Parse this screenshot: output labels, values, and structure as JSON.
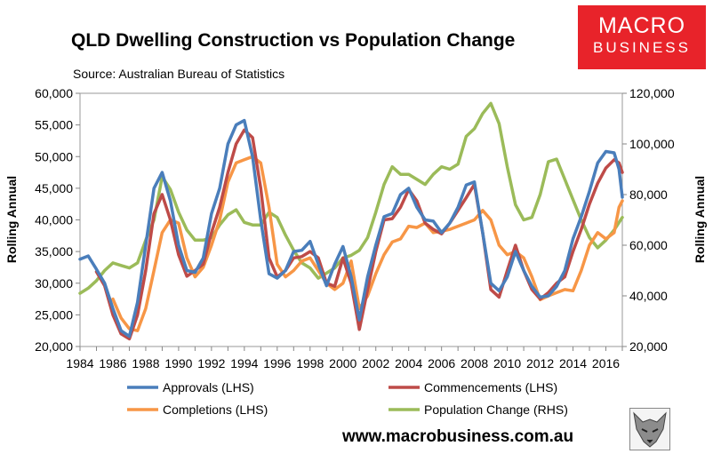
{
  "header": {
    "title": "QLD Dwelling Construction vs Population Change",
    "subtitle": "Source: Australian Bureau of Statistics"
  },
  "logo": {
    "line1": "MACRO",
    "line2": "BUSINESS",
    "color": "#e8232a"
  },
  "footer": {
    "website": "www.macrobusiness.com.au"
  },
  "chart_data": {
    "type": "line",
    "title": "QLD Dwelling Construction vs Population Change",
    "subtitle": "Source: Australian Bureau of Statistics",
    "ylabel": "Rolling Annual",
    "ylabel_right": "Rolling Annual",
    "ylim": [
      20000,
      60000
    ],
    "ylim_right": [
      20000,
      120000
    ],
    "xlim": [
      1984,
      2017
    ],
    "x_ticks": [
      "1984",
      "1986",
      "1988",
      "1990",
      "1992",
      "1994",
      "1996",
      "1998",
      "2000",
      "2002",
      "2004",
      "2006",
      "2008",
      "2010",
      "2012",
      "2014",
      "2016"
    ],
    "y_ticks_left": [
      "20,000",
      "25,000",
      "30,000",
      "35,000",
      "40,000",
      "45,000",
      "50,000",
      "55,000",
      "60,000"
    ],
    "y_ticks_right": [
      "20,000",
      "40,000",
      "60,000",
      "80,000",
      "100,000",
      "120,000"
    ],
    "grid": false,
    "legend_position": "bottom",
    "series": [
      {
        "name": "Approvals (LHS)",
        "axis": "left",
        "color": "#4a7ebb",
        "points": [
          [
            1984,
            33800
          ],
          [
            1984.5,
            34300
          ],
          [
            1985,
            32200
          ],
          [
            1985.5,
            30000
          ],
          [
            1986,
            26000
          ],
          [
            1986.5,
            22500
          ],
          [
            1987,
            21600
          ],
          [
            1987.5,
            27000
          ],
          [
            1988,
            36000
          ],
          [
            1988.5,
            45000
          ],
          [
            1989,
            47500
          ],
          [
            1989.5,
            43000
          ],
          [
            1990,
            36000
          ],
          [
            1990.5,
            32000
          ],
          [
            1991,
            31700
          ],
          [
            1991.5,
            34000
          ],
          [
            1992,
            41000
          ],
          [
            1992.5,
            45000
          ],
          [
            1993,
            52000
          ],
          [
            1993.5,
            55000
          ],
          [
            1994,
            55700
          ],
          [
            1994.5,
            50000
          ],
          [
            1995,
            40000
          ],
          [
            1995.5,
            31500
          ],
          [
            1996,
            30800
          ],
          [
            1996.5,
            32000
          ],
          [
            1997,
            35000
          ],
          [
            1997.5,
            35200
          ],
          [
            1998,
            36600
          ],
          [
            1998.5,
            33000
          ],
          [
            1999,
            29600
          ],
          [
            1999.5,
            33000
          ],
          [
            2000,
            35800
          ],
          [
            2000.5,
            31000
          ],
          [
            2001,
            24200
          ],
          [
            2001.5,
            31000
          ],
          [
            2002,
            36000
          ],
          [
            2002.5,
            40500
          ],
          [
            2003,
            41000
          ],
          [
            2003.5,
            44000
          ],
          [
            2004,
            45000
          ],
          [
            2004.5,
            42000
          ],
          [
            2005,
            40000
          ],
          [
            2005.5,
            39800
          ],
          [
            2006,
            38000
          ],
          [
            2006.5,
            39500
          ],
          [
            2007,
            42000
          ],
          [
            2007.5,
            45500
          ],
          [
            2008,
            46000
          ],
          [
            2008.5,
            38000
          ],
          [
            2009,
            30000
          ],
          [
            2009.5,
            28800
          ],
          [
            2010,
            31000
          ],
          [
            2010.5,
            35000
          ],
          [
            2011,
            32000
          ],
          [
            2011.5,
            29500
          ],
          [
            2012,
            27800
          ],
          [
            2012.5,
            28000
          ],
          [
            2013,
            29500
          ],
          [
            2013.5,
            32000
          ],
          [
            2014,
            37000
          ],
          [
            2014.5,
            40500
          ],
          [
            2015,
            44500
          ],
          [
            2015.5,
            49000
          ],
          [
            2016,
            50800
          ],
          [
            2016.5,
            50600
          ],
          [
            2016.8,
            48000
          ],
          [
            2017,
            43600
          ]
        ]
      },
      {
        "name": "Commencements (LHS)",
        "axis": "left",
        "color": "#be4b48",
        "points": [
          [
            1985,
            31800
          ],
          [
            1985.5,
            29600
          ],
          [
            1986,
            25000
          ],
          [
            1986.5,
            22000
          ],
          [
            1987,
            21200
          ],
          [
            1987.5,
            25000
          ],
          [
            1988,
            32000
          ],
          [
            1988.5,
            41000
          ],
          [
            1989,
            44000
          ],
          [
            1989.5,
            40000
          ],
          [
            1990,
            34500
          ],
          [
            1990.5,
            31100
          ],
          [
            1991,
            32000
          ],
          [
            1991.5,
            33000
          ],
          [
            1992,
            38000
          ],
          [
            1992.5,
            42000
          ],
          [
            1993,
            47500
          ],
          [
            1993.5,
            52000
          ],
          [
            1994,
            54200
          ],
          [
            1994.5,
            53000
          ],
          [
            1995,
            45000
          ],
          [
            1995.5,
            34000
          ],
          [
            1996,
            31000
          ],
          [
            1996.5,
            32000
          ],
          [
            1997,
            34000
          ],
          [
            1997.5,
            34200
          ],
          [
            1998,
            35000
          ],
          [
            1998.5,
            34000
          ],
          [
            1999,
            30000
          ],
          [
            1999.5,
            29500
          ],
          [
            2000,
            34000
          ],
          [
            2000.5,
            30000
          ],
          [
            2001,
            22700
          ],
          [
            2001.5,
            29000
          ],
          [
            2002,
            35000
          ],
          [
            2002.5,
            40000
          ],
          [
            2003,
            40200
          ],
          [
            2003.5,
            42000
          ],
          [
            2004,
            44800
          ],
          [
            2004.5,
            43000
          ],
          [
            2005,
            39500
          ],
          [
            2005.5,
            38500
          ],
          [
            2006,
            37800
          ],
          [
            2006.5,
            39500
          ],
          [
            2007,
            41500
          ],
          [
            2007.5,
            43500
          ],
          [
            2008,
            45600
          ],
          [
            2008.5,
            38000
          ],
          [
            2009,
            29000
          ],
          [
            2009.5,
            27800
          ],
          [
            2010,
            32000
          ],
          [
            2010.5,
            36000
          ],
          [
            2011,
            32000
          ],
          [
            2011.5,
            29000
          ],
          [
            2012,
            27500
          ],
          [
            2012.5,
            28500
          ],
          [
            2013,
            30000
          ],
          [
            2013.5,
            31000
          ],
          [
            2014,
            35000
          ],
          [
            2014.5,
            38500
          ],
          [
            2015,
            42500
          ],
          [
            2015.5,
            45800
          ],
          [
            2016,
            48200
          ],
          [
            2016.5,
            49500
          ],
          [
            2016.8,
            49000
          ],
          [
            2017,
            47500
          ]
        ]
      },
      {
        "name": "Completions (LHS)",
        "axis": "left",
        "color": "#f79646",
        "points": [
          [
            1986,
            27500
          ],
          [
            1986.5,
            24500
          ],
          [
            1987,
            22800
          ],
          [
            1987.5,
            22500
          ],
          [
            1988,
            26000
          ],
          [
            1988.5,
            32000
          ],
          [
            1989,
            38000
          ],
          [
            1989.5,
            40000
          ],
          [
            1990,
            39500
          ],
          [
            1990.5,
            34000
          ],
          [
            1991,
            31000
          ],
          [
            1991.5,
            32500
          ],
          [
            1992,
            36000
          ],
          [
            1992.5,
            40000
          ],
          [
            1993,
            46000
          ],
          [
            1993.5,
            49000
          ],
          [
            1994,
            49500
          ],
          [
            1994.5,
            50000
          ],
          [
            1995,
            49000
          ],
          [
            1995.5,
            42000
          ],
          [
            1996,
            33000
          ],
          [
            1996.5,
            31000
          ],
          [
            1997,
            32000
          ],
          [
            1997.5,
            33500
          ],
          [
            1998,
            34000
          ],
          [
            1998.5,
            32000
          ],
          [
            1999,
            30000
          ],
          [
            1999.5,
            29000
          ],
          [
            2000,
            30000
          ],
          [
            2000.5,
            33500
          ],
          [
            2001,
            26000
          ],
          [
            2001.5,
            28000
          ],
          [
            2002,
            31500
          ],
          [
            2002.5,
            34500
          ],
          [
            2003,
            36500
          ],
          [
            2003.5,
            37000
          ],
          [
            2004,
            39000
          ],
          [
            2004.5,
            38800
          ],
          [
            2005,
            39500
          ],
          [
            2005.5,
            38000
          ],
          [
            2006,
            38200
          ],
          [
            2006.5,
            38500
          ],
          [
            2007,
            39000
          ],
          [
            2007.5,
            39500
          ],
          [
            2008,
            40000
          ],
          [
            2008.5,
            41500
          ],
          [
            2009,
            40000
          ],
          [
            2009.5,
            36000
          ],
          [
            2010,
            34500
          ],
          [
            2010.5,
            35000
          ],
          [
            2011,
            34000
          ],
          [
            2011.5,
            31000
          ],
          [
            2012,
            27400
          ],
          [
            2012.5,
            28000
          ],
          [
            2013,
            28500
          ],
          [
            2013.5,
            29000
          ],
          [
            2014,
            28800
          ],
          [
            2014.5,
            32000
          ],
          [
            2015,
            36000
          ],
          [
            2015.5,
            38000
          ],
          [
            2016,
            37000
          ],
          [
            2016.5,
            38000
          ],
          [
            2016.8,
            42000
          ],
          [
            2017,
            43000
          ]
        ]
      },
      {
        "name": "Population Change (RHS)",
        "axis": "right",
        "color": "#9bbb59",
        "points": [
          [
            1984,
            41000
          ],
          [
            1984.5,
            43000
          ],
          [
            1985,
            46000
          ],
          [
            1985.5,
            50000
          ],
          [
            1986,
            53000
          ],
          [
            1986.5,
            52000
          ],
          [
            1987,
            51000
          ],
          [
            1987.5,
            53000
          ],
          [
            1988,
            62000
          ],
          [
            1988.5,
            70000
          ],
          [
            1989,
            87000
          ],
          [
            1989.5,
            82000
          ],
          [
            1990,
            73000
          ],
          [
            1990.5,
            66000
          ],
          [
            1991,
            62000
          ],
          [
            1991.5,
            62000
          ],
          [
            1992,
            63000
          ],
          [
            1992.5,
            68000
          ],
          [
            1993,
            72000
          ],
          [
            1993.5,
            74000
          ],
          [
            1994,
            69000
          ],
          [
            1994.5,
            68000
          ],
          [
            1995,
            68000
          ],
          [
            1995.5,
            73000
          ],
          [
            1996,
            71000
          ],
          [
            1996.5,
            64000
          ],
          [
            1997,
            58000
          ],
          [
            1997.5,
            53000
          ],
          [
            1998,
            51000
          ],
          [
            1998.5,
            47000
          ],
          [
            1999,
            49000
          ],
          [
            1999.5,
            51000
          ],
          [
            2000,
            55000
          ],
          [
            2000.5,
            56000
          ],
          [
            2001,
            58000
          ],
          [
            2001.5,
            63000
          ],
          [
            2002,
            73000
          ],
          [
            2002.5,
            84000
          ],
          [
            2003,
            91000
          ],
          [
            2003.5,
            88000
          ],
          [
            2004,
            88000
          ],
          [
            2004.5,
            86000
          ],
          [
            2005,
            84000
          ],
          [
            2005.5,
            88000
          ],
          [
            2006,
            91000
          ],
          [
            2006.5,
            90000
          ],
          [
            2007,
            92000
          ],
          [
            2007.5,
            103000
          ],
          [
            2008,
            106000
          ],
          [
            2008.5,
            112000
          ],
          [
            2009,
            116000
          ],
          [
            2009.5,
            108000
          ],
          [
            2010,
            91000
          ],
          [
            2010.5,
            76000
          ],
          [
            2011,
            70000
          ],
          [
            2011.5,
            71000
          ],
          [
            2012,
            80000
          ],
          [
            2012.5,
            93000
          ],
          [
            2013,
            94000
          ],
          [
            2013.5,
            86000
          ],
          [
            2014,
            78000
          ],
          [
            2014.5,
            70000
          ],
          [
            2015,
            63000
          ],
          [
            2015.5,
            59000
          ],
          [
            2016,
            62000
          ],
          [
            2016.5,
            66000
          ],
          [
            2017,
            71000
          ]
        ]
      }
    ]
  }
}
